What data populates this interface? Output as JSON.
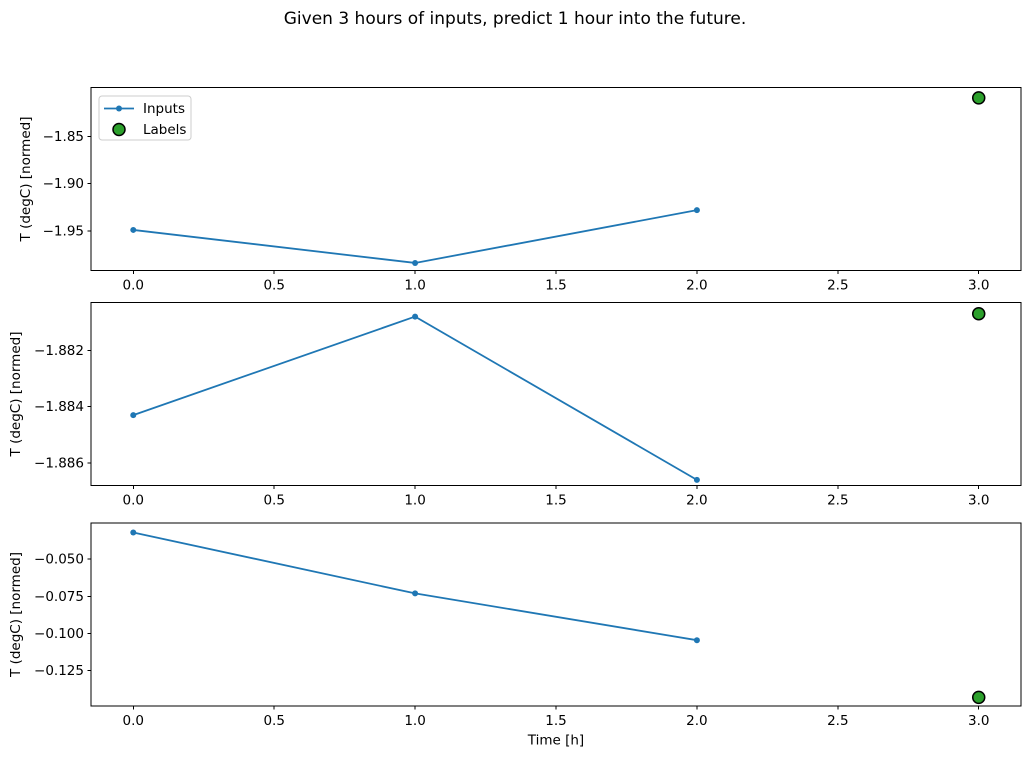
{
  "figure": {
    "title": "Given 3 hours of inputs, predict 1 hour into the future.",
    "xlabel": "Time [h]",
    "ylabel": "T (degC) [normed]",
    "colors": {
      "inputs_line": "#1f77b4",
      "labels_fill": "#2ca02c",
      "labels_edge": "#000000",
      "axis": "#000000",
      "legend_border": "#cccccc",
      "background": "#ffffff"
    },
    "legend": {
      "position": "upper left",
      "entries": [
        {
          "label": "Inputs",
          "marker": "line-with-dot"
        },
        {
          "label": "Labels",
          "marker": "circle"
        }
      ]
    }
  },
  "chart_data": [
    {
      "type": "line",
      "ylabel": "T (degC) [normed]",
      "xlabel": "",
      "x": [
        0,
        1,
        2
      ],
      "series": [
        {
          "name": "Inputs",
          "x": [
            0,
            1,
            2
          ],
          "values": [
            -1.949,
            -1.984,
            -1.928
          ]
        },
        {
          "name": "Labels",
          "x": [
            3
          ],
          "values": [
            -1.809
          ]
        }
      ],
      "xlim": [
        -0.15,
        3.15
      ],
      "ylim": [
        -1.992,
        -1.798
      ],
      "xticks": [
        0.0,
        0.5,
        1.0,
        1.5,
        2.0,
        2.5,
        3.0
      ],
      "xtick_labels": [
        "0.0",
        "0.5",
        "1.0",
        "1.5",
        "2.0",
        "2.5",
        "3.0"
      ],
      "yticks": [
        -1.85,
        -1.9,
        -1.95
      ],
      "ytick_labels": [
        "−1.85",
        "−1.90",
        "−1.95"
      ],
      "grid": false,
      "legend": true
    },
    {
      "type": "line",
      "ylabel": "T (degC) [normed]",
      "xlabel": "",
      "x": [
        0,
        1,
        2
      ],
      "series": [
        {
          "name": "Inputs",
          "x": [
            0,
            1,
            2
          ],
          "values": [
            -1.8843,
            -1.8808,
            -1.8866
          ]
        },
        {
          "name": "Labels",
          "x": [
            3
          ],
          "values": [
            -1.8807
          ]
        }
      ],
      "xlim": [
        -0.15,
        3.15
      ],
      "ylim": [
        -1.8868,
        -1.8803
      ],
      "xticks": [
        0.0,
        0.5,
        1.0,
        1.5,
        2.0,
        2.5,
        3.0
      ],
      "xtick_labels": [
        "0.0",
        "0.5",
        "1.0",
        "1.5",
        "2.0",
        "2.5",
        "3.0"
      ],
      "yticks": [
        -1.882,
        -1.884,
        -1.886
      ],
      "ytick_labels": [
        "−1.882",
        "−1.884",
        "−1.886"
      ],
      "grid": false,
      "legend": false
    },
    {
      "type": "line",
      "ylabel": "T (degC) [normed]",
      "xlabel": "Time [h]",
      "x": [
        0,
        1,
        2
      ],
      "series": [
        {
          "name": "Inputs",
          "x": [
            0,
            1,
            2
          ],
          "values": [
            -0.032,
            -0.073,
            -0.1045
          ]
        },
        {
          "name": "Labels",
          "x": [
            3
          ],
          "values": [
            -0.143
          ]
        }
      ],
      "xlim": [
        -0.15,
        3.15
      ],
      "ylim": [
        -0.1488,
        -0.0256
      ],
      "xticks": [
        0.0,
        0.5,
        1.0,
        1.5,
        2.0,
        2.5,
        3.0
      ],
      "xtick_labels": [
        "0.0",
        "0.5",
        "1.0",
        "1.5",
        "2.0",
        "2.5",
        "3.0"
      ],
      "yticks": [
        -0.05,
        -0.075,
        -0.1,
        -0.125
      ],
      "ytick_labels": [
        "−0.050",
        "−0.075",
        "−0.100",
        "−0.125"
      ],
      "grid": false,
      "legend": false
    }
  ]
}
